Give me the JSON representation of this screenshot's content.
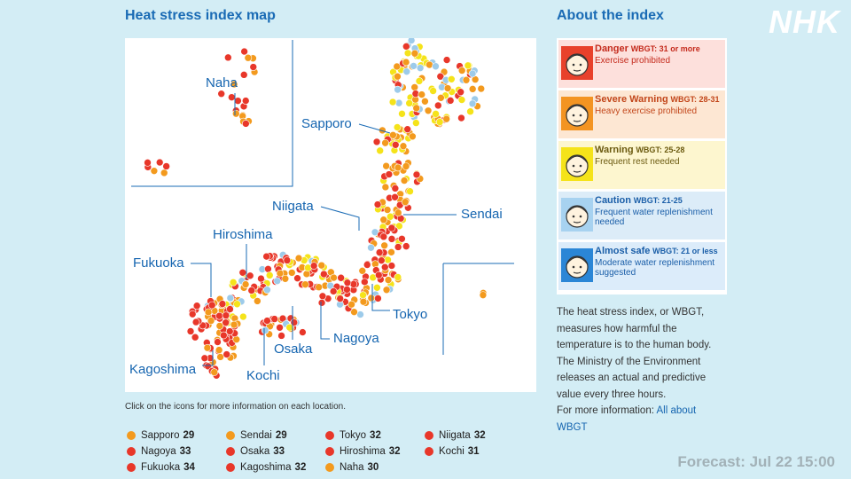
{
  "logo": "NHK",
  "map": {
    "title": "Heat stress index map",
    "labels": [
      "Naha",
      "Sapporo",
      "Niigata",
      "Sendai",
      "Hiroshima",
      "Fukuoka",
      "Tokyo",
      "Nagoya",
      "Osaka",
      "Kochi",
      "Kagoshima"
    ],
    "note": "Click on the icons for more information on each location."
  },
  "readings": [
    {
      "name": "Sapporo",
      "value": 29,
      "color": "#f39a1e"
    },
    {
      "name": "Sendai",
      "value": 29,
      "color": "#f39a1e"
    },
    {
      "name": "Tokyo",
      "value": 32,
      "color": "#e8372a"
    },
    {
      "name": "Niigata",
      "value": 32,
      "color": "#e8372a"
    },
    {
      "name": "Nagoya",
      "value": 33,
      "color": "#e8372a"
    },
    {
      "name": "Osaka",
      "value": 33,
      "color": "#e8372a"
    },
    {
      "name": "Hiroshima",
      "value": 32,
      "color": "#e8372a"
    },
    {
      "name": "Kochi",
      "value": 31,
      "color": "#e8372a"
    },
    {
      "name": "Fukuoka",
      "value": 34,
      "color": "#e8372a"
    },
    {
      "name": "Kagoshima",
      "value": 32,
      "color": "#e8372a"
    },
    {
      "name": "Naha",
      "value": 30,
      "color": "#f39a1e"
    }
  ],
  "index": {
    "title": "About the index",
    "levels": [
      {
        "name": "Danger",
        "range": "WBGT: 31 or more",
        "advice": "Exercise prohibited",
        "color": "#e8412b",
        "background": "#fde0dc",
        "text_color": "#c42a1c"
      },
      {
        "name": "Severe Warning",
        "range": "WBGT: 28-31",
        "advice": "Heavy exercise prohibited",
        "color": "#f39422",
        "background": "#fde7d3",
        "text_color": "#c2461a"
      },
      {
        "name": "Warning",
        "range": "WBGT: 25-28",
        "advice": "Frequent rest needed",
        "color": "#f5e31a",
        "background": "#fdf6cf",
        "text_color": "#6b5a10"
      },
      {
        "name": "Caution",
        "range": "WBGT: 21-25",
        "advice": "Frequent water replenishment needed",
        "color": "#a7d2f0",
        "background": "#dcecf8",
        "text_color": "#1a5ea8"
      },
      {
        "name": "Almost safe",
        "range": "WBGT: 21 or less",
        "advice": "Moderate water replenishment suggested",
        "color": "#2b86d6",
        "background": "#dcecfa",
        "text_color": "#1a5ea8"
      }
    ],
    "description": "The heat stress index, or WBGT, measures how harmful the temperature is to the human body. The Ministry of the Environment releases an actual and predictive value every three hours.",
    "more_prefix": "For more information:",
    "more_link": "All about WBGT"
  },
  "forecast": "Forecast: Jul 22 15:00"
}
